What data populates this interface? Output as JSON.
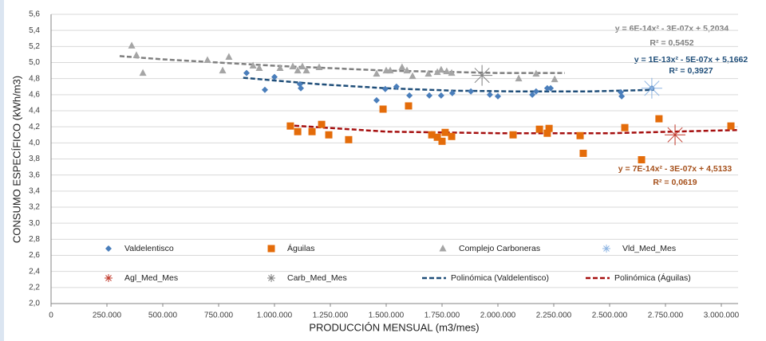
{
  "chart_data": {
    "type": "scatter",
    "x_label": "PRODUCCIÓN MENSUAL (m3/mes)",
    "y_label": "CONSUMO ESPECÍFICO (kWh/m3)",
    "xlim": [
      0,
      3075000
    ],
    "ylim": [
      2.0,
      5.6
    ],
    "xticks": [
      0,
      {
        "value": 250000,
        "label": "250.000"
      },
      {
        "value": 500000,
        "label": "500.000"
      },
      {
        "value": 750000,
        "label": "750.000"
      },
      {
        "value": 1000000,
        "label": "1.000.000"
      },
      {
        "value": 1250000,
        "label": "1.250.000"
      },
      {
        "value": 1500000,
        "label": "1.500.000"
      },
      {
        "value": 1750000,
        "label": "1.750.000"
      },
      {
        "value": 2000000,
        "label": "2.000.000"
      },
      {
        "value": 2250000,
        "label": "2.250.000"
      },
      {
        "value": 2500000,
        "label": "2.500.000"
      },
      {
        "value": 2750000,
        "label": "2.750.000"
      },
      {
        "value": 3000000,
        "label": "3.000.000"
      }
    ],
    "yticks": [
      {
        "value": 2.0,
        "label": "2,0"
      },
      {
        "value": 2.2,
        "label": "2,2"
      },
      {
        "value": 2.4,
        "label": "2,4"
      },
      {
        "value": 2.6,
        "label": "2,6"
      },
      {
        "value": 2.8,
        "label": "2,8"
      },
      {
        "value": 3.0,
        "label": "3,0"
      },
      {
        "value": 3.2,
        "label": "3,2"
      },
      {
        "value": 3.4,
        "label": "3,4"
      },
      {
        "value": 3.6,
        "label": "3,6"
      },
      {
        "value": 3.8,
        "label": "3,8"
      },
      {
        "value": 4.0,
        "label": "4,0"
      },
      {
        "value": 4.2,
        "label": "4,2"
      },
      {
        "value": 4.4,
        "label": "4,4"
      },
      {
        "value": 4.6,
        "label": "4,6"
      },
      {
        "value": 4.8,
        "label": "4,8"
      },
      {
        "value": 5.0,
        "label": "5,0"
      },
      {
        "value": 5.2,
        "label": "5,2"
      },
      {
        "value": 5.4,
        "label": "5,4"
      },
      {
        "value": 5.6,
        "label": "5,6"
      }
    ],
    "grid": true,
    "series": [
      {
        "name": "Valdelentisco",
        "color": "#4a7ebb",
        "marker": "diamond",
        "x": [
          875000,
          957000,
          1000000,
          1114000,
          1118000,
          1457000,
          1496000,
          1546000,
          1604000,
          1693000,
          1746000,
          1796000,
          1879000,
          1964000,
          2000000,
          2154000,
          2171000,
          2221000,
          2236000,
          2550000,
          2554000,
          2689000
        ],
        "values": [
          4.87,
          4.66,
          4.82,
          4.73,
          4.68,
          4.53,
          4.67,
          4.7,
          4.59,
          4.59,
          4.59,
          4.62,
          4.64,
          4.6,
          4.58,
          4.6,
          4.64,
          4.68,
          4.68,
          4.63,
          4.58,
          4.68
        ]
      },
      {
        "name": "Águilas",
        "color": "#e46c0a",
        "marker": "square",
        "x": [
          1071000,
          1104000,
          1168000,
          1211000,
          1243000,
          1332000,
          1486000,
          1600000,
          1704000,
          1729000,
          1750000,
          1764000,
          1793000,
          2068000,
          2186000,
          2221000,
          2229000,
          2368000,
          2382000,
          2568000,
          2643000,
          2721000,
          3043000
        ],
        "values": [
          4.21,
          4.14,
          4.14,
          4.23,
          4.1,
          4.04,
          4.42,
          4.46,
          4.1,
          4.07,
          4.02,
          4.13,
          4.08,
          4.1,
          4.17,
          4.12,
          4.18,
          4.09,
          3.87,
          4.19,
          3.79,
          4.3,
          4.21
        ]
      },
      {
        "name": "Complejo Carboneras",
        "color": "#a5a5a5",
        "marker": "triangle",
        "x": [
          361000,
          382000,
          411000,
          700000,
          768000,
          796000,
          904000,
          932000,
          1025000,
          1082000,
          1104000,
          1125000,
          1143000,
          1200000,
          1457000,
          1500000,
          1518000,
          1571000,
          1593000,
          1618000,
          1689000,
          1729000,
          1746000,
          1771000,
          1793000,
          2093000,
          2171000,
          2254000
        ],
        "values": [
          5.21,
          5.09,
          4.87,
          5.03,
          4.9,
          5.07,
          4.96,
          4.93,
          4.93,
          4.95,
          4.9,
          4.95,
          4.9,
          4.94,
          4.86,
          4.9,
          4.9,
          4.94,
          4.9,
          4.83,
          4.86,
          4.88,
          4.91,
          4.89,
          4.87,
          4.8,
          4.86,
          4.79
        ]
      },
      {
        "name": "Vld_Med_Mes",
        "color": "#8db4e2",
        "marker": "asterisk",
        "x": [
          2689000
        ],
        "values": [
          4.68
        ]
      },
      {
        "name": "Agl_Med_Mes",
        "color": "#c0392b",
        "marker": "asterisk",
        "x": [
          2793000
        ],
        "values": [
          4.1
        ]
      },
      {
        "name": "Carb_Med_Mes",
        "color": "#7f7f7f",
        "marker": "asterisk",
        "x": [
          1929000
        ],
        "values": [
          4.84
        ]
      },
      {
        "name": "Polinómica (Valdelentisco)",
        "color": "#1f4e79",
        "marker": "dash",
        "x": [
          860000,
          1200000,
          1500000,
          1800000,
          2100000,
          2400000,
          2700000
        ],
        "values": [
          4.81,
          4.73,
          4.68,
          4.65,
          4.64,
          4.64,
          4.66
        ]
      },
      {
        "name": "Polinómica (Águilas)",
        "color": "#a50f0f",
        "marker": "dash",
        "x": [
          1057000,
          1500000,
          2000000,
          2500000,
          3075000
        ],
        "values": [
          4.22,
          4.14,
          4.12,
          4.12,
          4.16
        ]
      },
      {
        "color": "#7f7f7f",
        "marker": "dash",
        "x": [
          307000,
          500000,
          1000000,
          1500000,
          2000000,
          2300000
        ],
        "values": [
          5.08,
          5.04,
          4.96,
          4.9,
          4.87,
          4.87
        ]
      }
    ],
    "annotations": [
      "y = 6E-14x² - 3E-07x + 5,2034",
      "R² = 0,5452",
      "y = 1E-13x² - 5E-07x + 5,1662",
      "R² = 0,3927",
      "y = 7E-14x² - 3E-07x + 4,5133",
      "R² = 0,0619"
    ]
  }
}
